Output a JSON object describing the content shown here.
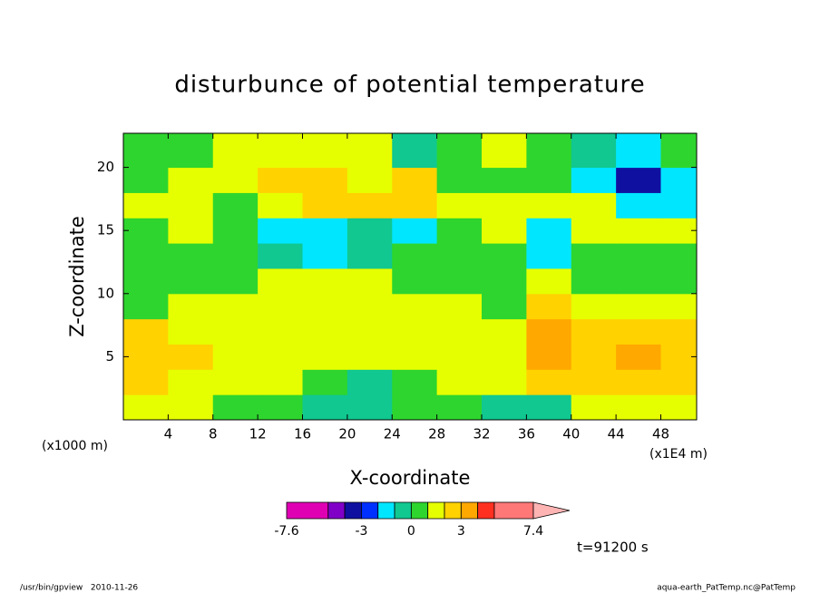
{
  "chart_data": {
    "type": "contour",
    "title": "disturbunce of potential temperature",
    "xlabel": "X-coordinate",
    "ylabel": "Z-coordinate",
    "xunit": "(x1E4 m)",
    "yunit": "(x1000 m)",
    "xlim": [
      0,
      51.2
    ],
    "ylim": [
      0,
      22.7
    ],
    "xticks": [
      4,
      8,
      12,
      16,
      20,
      24,
      28,
      32,
      36,
      40,
      44,
      48
    ],
    "yticks": [
      5,
      10,
      15,
      20
    ],
    "x_bins": [
      0,
      4,
      8,
      12,
      16,
      20,
      24,
      28,
      32,
      36,
      40,
      44,
      48,
      51.2
    ],
    "z_bins": [
      0,
      2,
      4,
      6,
      8,
      10,
      12,
      14,
      16,
      18,
      20,
      22.7
    ],
    "values": [
      [
        1.5,
        1.5,
        0.5,
        0.5,
        -0.5,
        -0.5,
        0.5,
        0.5,
        -0.5,
        -0.5,
        1.5,
        1.5,
        1.5
      ],
      [
        2.5,
        1.5,
        1.5,
        1.5,
        0.5,
        -0.5,
        0.5,
        1.5,
        1.5,
        2.5,
        2.5,
        2.5,
        2.5
      ],
      [
        2.5,
        2.5,
        1.5,
        1.5,
        1.5,
        1.5,
        1.5,
        1.5,
        1.5,
        3.5,
        2.5,
        3.5,
        2.5
      ],
      [
        2.5,
        1.5,
        1.5,
        1.5,
        1.5,
        1.5,
        1.5,
        1.5,
        1.5,
        3.5,
        2.5,
        2.5,
        2.5
      ],
      [
        0.5,
        1.5,
        1.5,
        1.5,
        1.5,
        1.5,
        1.5,
        1.5,
        0.5,
        2.5,
        1.5,
        1.5,
        1.5
      ],
      [
        0.5,
        0.5,
        0.5,
        1.5,
        1.5,
        1.5,
        0.5,
        0.5,
        0.5,
        1.5,
        0.5,
        0.5,
        0.5
      ],
      [
        0.5,
        0.5,
        0.5,
        -0.5,
        -1.5,
        -0.5,
        0.5,
        0.5,
        0.5,
        -1.5,
        0.5,
        0.5,
        0.5
      ],
      [
        0.5,
        1.5,
        0.5,
        -1.5,
        -1.5,
        -0.5,
        -1.5,
        0.5,
        1.5,
        -1.5,
        1.5,
        1.5,
        1.5
      ],
      [
        1.5,
        1.5,
        0.5,
        1.5,
        2.5,
        2.5,
        2.5,
        1.5,
        1.5,
        1.5,
        1.5,
        -1.5,
        -1.5
      ],
      [
        0.5,
        1.5,
        1.5,
        2.5,
        2.5,
        1.5,
        2.5,
        0.5,
        0.5,
        0.5,
        -1.5,
        -3.5,
        -1.5
      ],
      [
        0.5,
        0.5,
        1.5,
        1.5,
        1.5,
        1.5,
        -0.5,
        0.5,
        1.5,
        0.5,
        -0.5,
        -1.5,
        0.5
      ]
    ],
    "levels": [
      -7.6,
      -5,
      -4,
      -3,
      -2,
      -1,
      0,
      1,
      2,
      3,
      4,
      5,
      7.4
    ],
    "colors": [
      "#e000b4",
      "#8000c8",
      "#1010a0",
      "#0030ff",
      "#00e6ff",
      "#10c890",
      "#2ed52e",
      "#e6ff00",
      "#ffd200",
      "#ffa800",
      "#ff3020",
      "#ff7878"
    ],
    "extend_color": "#ffb4b4",
    "colorbar_ticks": [
      -7.6,
      -3,
      0,
      3,
      7.4
    ],
    "time_label": "t=91200 s",
    "footer_left": "/usr/bin/gpview   2010-11-26",
    "footer_right": "aqua-earth_PatTemp.nc@PatTemp"
  }
}
